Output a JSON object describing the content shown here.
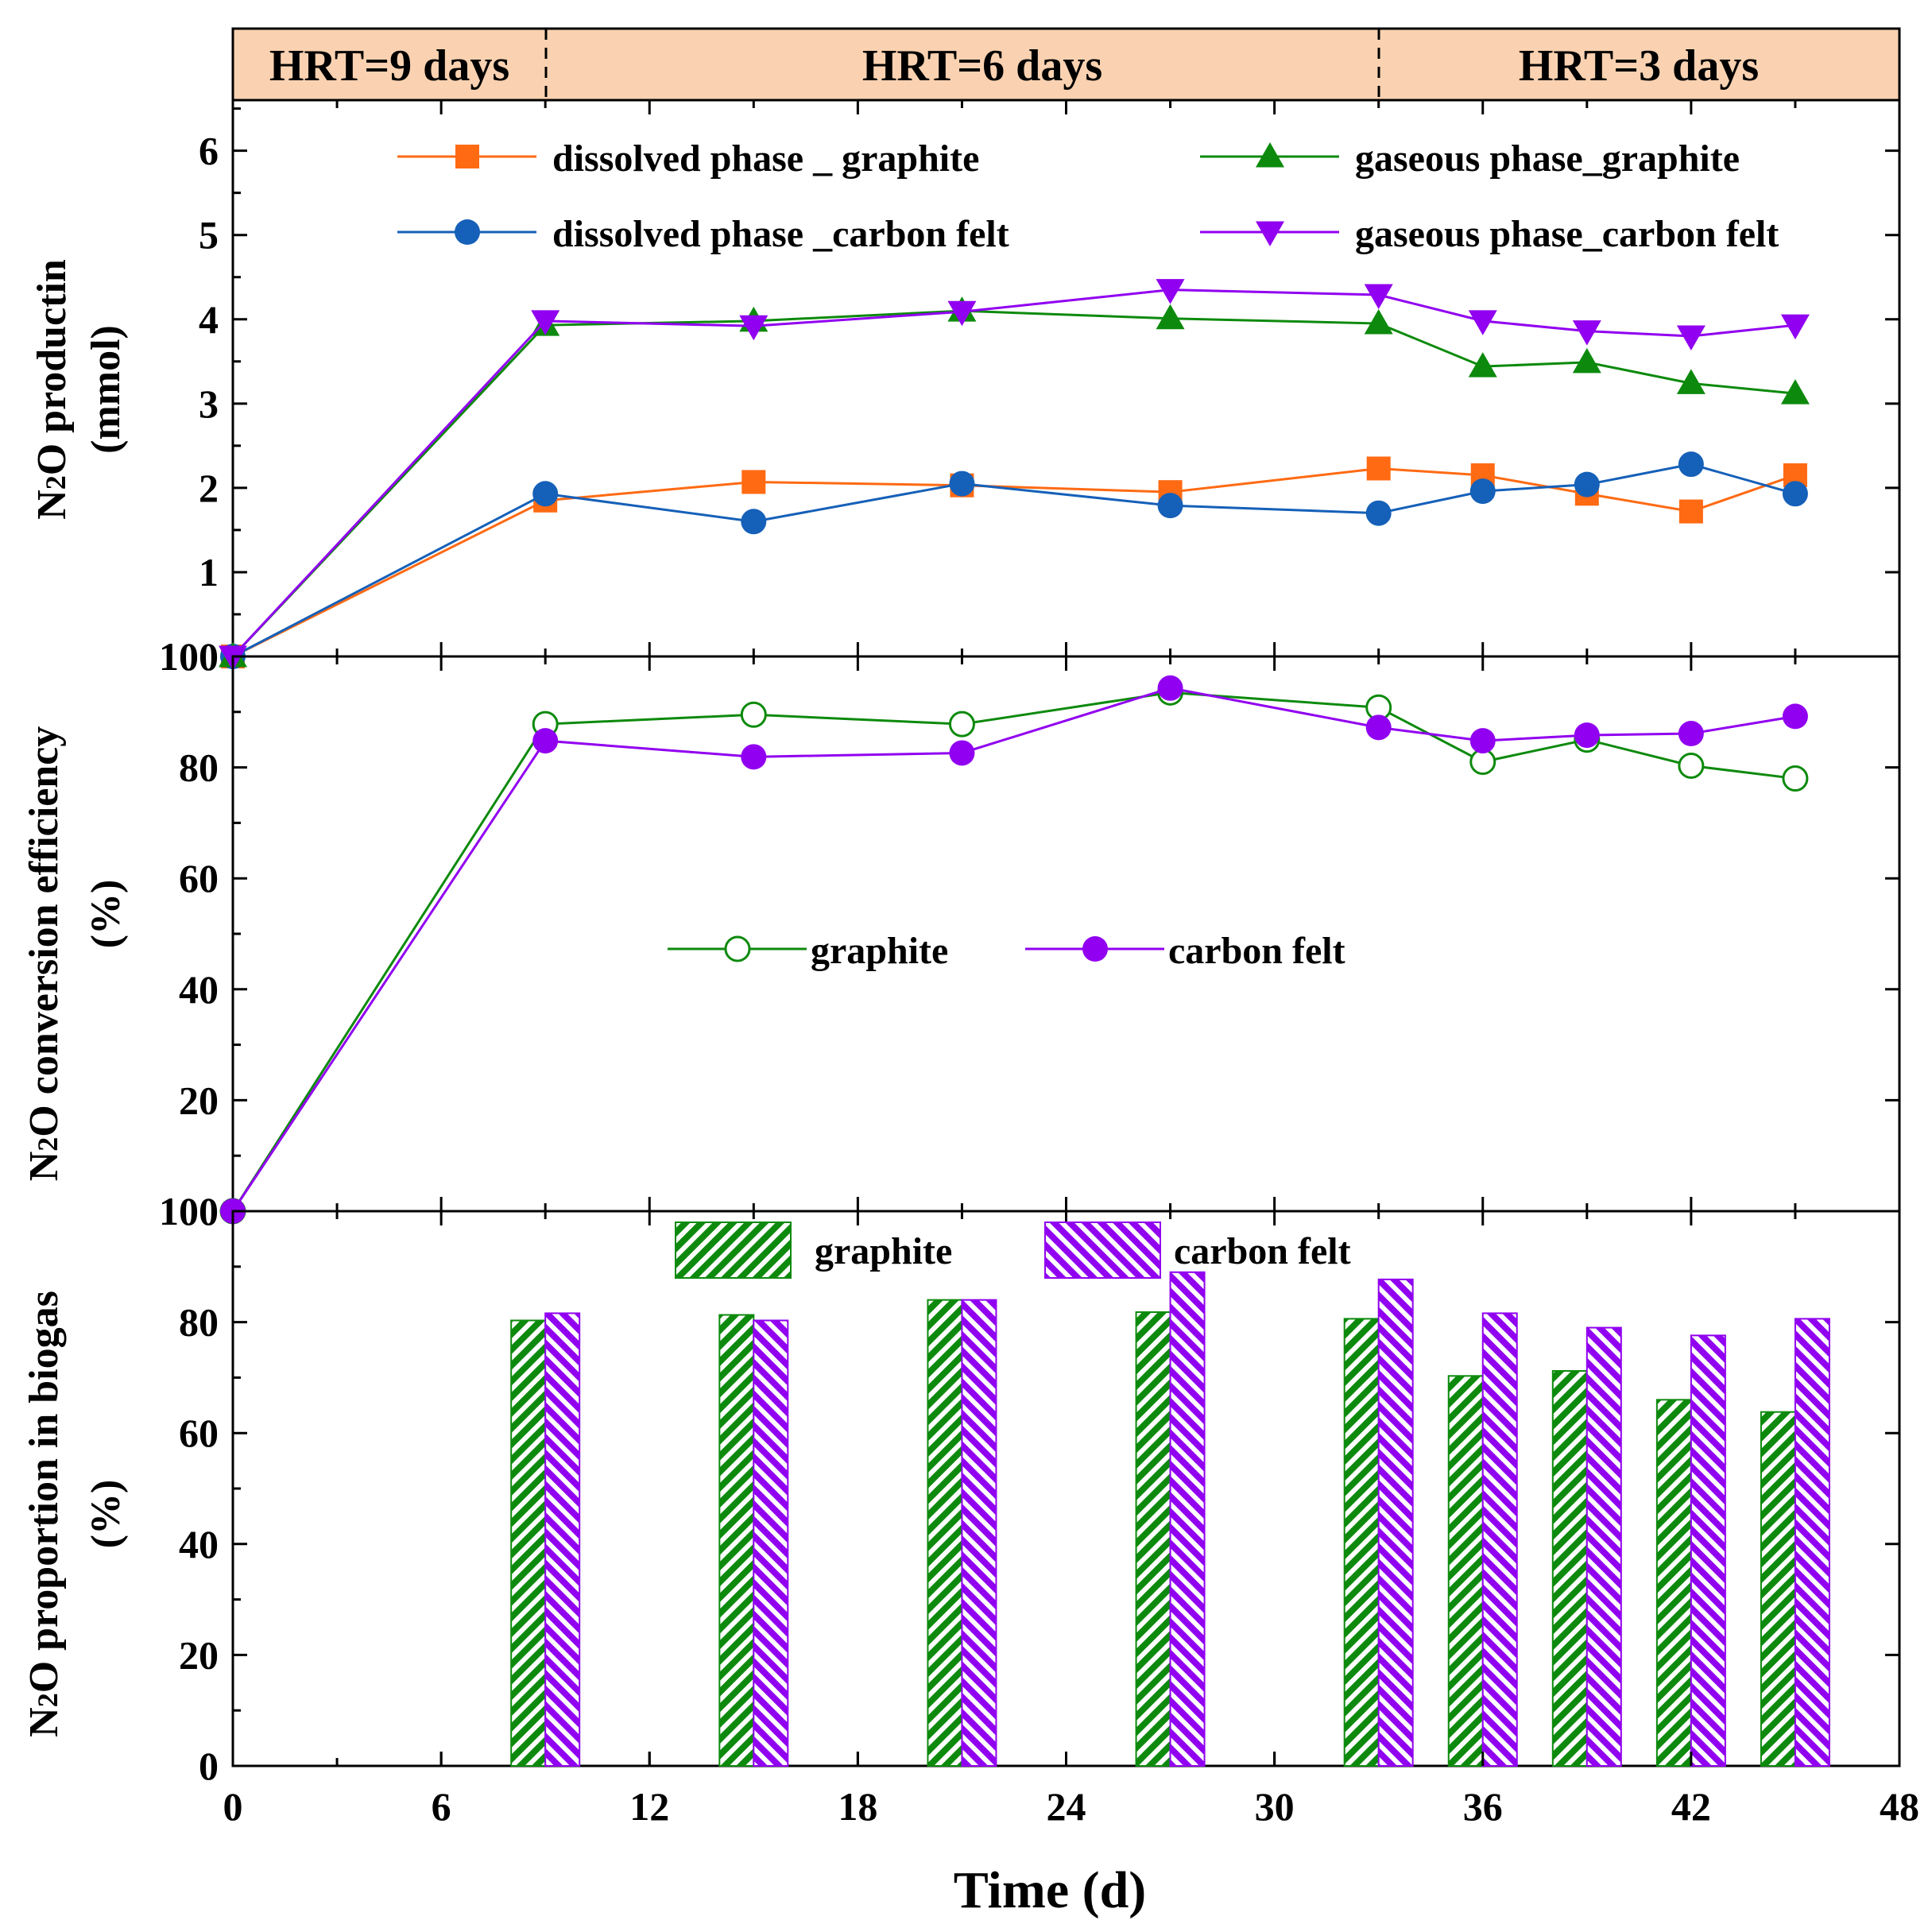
{
  "colors": {
    "orange": "#ff6a13",
    "green": "#0d8a0d",
    "blue": "#1560b8",
    "purple": "#9100f0",
    "hrt_band": "#fad2b1"
  },
  "hrt_band": {
    "labels": [
      "HRT=9 days",
      "HRT=6 days",
      "HRT=3 days"
    ],
    "boundaries_days": [
      9,
      33
    ]
  },
  "chart_data": [
    {
      "type": "line",
      "panel": "top",
      "ylabel_line1": "N2O productin",
      "ylabel_line2": "(mmol)",
      "ylim": [
        0,
        6.6
      ],
      "yticks": [
        1,
        2,
        3,
        4,
        5,
        6
      ],
      "ytick_labels": [
        "1",
        "2",
        "3",
        "4",
        "5",
        "6"
      ],
      "series": [
        {
          "name": "dissolved phase _ graphite",
          "color": "orange",
          "marker": "square",
          "x": [
            0,
            9,
            15,
            21,
            27,
            33,
            36,
            39,
            42,
            45
          ],
          "values": [
            0,
            1.85,
            2.07,
            2.03,
            1.95,
            2.23,
            2.15,
            1.93,
            1.72,
            2.15
          ]
        },
        {
          "name": "dissolved phase _carbon felt",
          "color": "blue",
          "marker": "circle",
          "x": [
            0,
            9,
            15,
            21,
            27,
            33,
            36,
            39,
            42,
            45
          ],
          "values": [
            0,
            1.93,
            1.6,
            2.05,
            1.79,
            1.7,
            1.96,
            2.04,
            2.28,
            1.93
          ]
        },
        {
          "name": "gaseous phase_graphite",
          "color": "green",
          "marker": "triangle-up",
          "x": [
            0,
            9,
            15,
            21,
            27,
            33,
            36,
            39,
            42,
            45
          ],
          "values": [
            0,
            3.93,
            3.98,
            4.1,
            4.01,
            3.95,
            3.44,
            3.49,
            3.24,
            3.12
          ]
        },
        {
          "name": "gaseous phase_carbon felt",
          "color": "purple",
          "marker": "triangle-down",
          "x": [
            0,
            9,
            15,
            21,
            27,
            33,
            36,
            39,
            42,
            45
          ],
          "values": [
            0,
            3.98,
            3.92,
            4.09,
            4.35,
            4.29,
            3.98,
            3.86,
            3.8,
            3.93
          ]
        }
      ]
    },
    {
      "type": "line",
      "panel": "middle",
      "ylabel_line1": "N2O conversion efficiency",
      "ylabel_line2": "(%)",
      "ylim": [
        0,
        100
      ],
      "yticks": [
        20,
        40,
        60,
        80,
        100
      ],
      "ytick_labels": [
        "20",
        "40",
        "60",
        "80",
        "100"
      ],
      "series": [
        {
          "name": "graphite",
          "color": "green",
          "marker": "circle-open",
          "x": [
            0,
            9,
            15,
            21,
            27,
            33,
            36,
            39,
            42,
            45
          ],
          "values": [
            0,
            87.8,
            89.5,
            87.8,
            93.5,
            90.8,
            81,
            85,
            80.3,
            78
          ]
        },
        {
          "name": "carbon felt",
          "color": "purple",
          "marker": "circle",
          "x": [
            0,
            9,
            15,
            21,
            27,
            33,
            36,
            39,
            42,
            45
          ],
          "values": [
            0,
            84.8,
            81.9,
            82.6,
            94.3,
            87.2,
            84.8,
            85.8,
            86.1,
            89.2
          ]
        }
      ]
    },
    {
      "type": "bar",
      "panel": "bottom",
      "ylabel_line1": "N2O proportion in biogas",
      "ylabel_line2": "(%)",
      "ylim": [
        0,
        100
      ],
      "yticks": [
        0,
        20,
        40,
        60,
        80,
        100
      ],
      "ytick_labels": [
        "0",
        "20",
        "40",
        "60",
        "80",
        "100"
      ],
      "xlabel": "Time (d)",
      "xlim": [
        0,
        48
      ],
      "xticks": [
        0,
        6,
        12,
        18,
        24,
        30,
        36,
        42,
        48
      ],
      "xtick_labels": [
        "0",
        "6",
        "12",
        "18",
        "24",
        "30",
        "36",
        "42",
        "48"
      ],
      "categories": [
        9,
        15,
        21,
        27,
        33,
        36,
        39,
        42,
        45
      ],
      "series": [
        {
          "name": "graphite",
          "color": "green",
          "pattern": "diagonal-hatch",
          "values": [
            80.3,
            81.3,
            84,
            81.8,
            80.6,
            70.3,
            71.2,
            66,
            63.8
          ]
        },
        {
          "name": "carbon felt",
          "color": "purple",
          "pattern": "diagonal-hatch-reverse",
          "values": [
            81.6,
            80.3,
            84,
            89,
            87.7,
            81.6,
            79,
            77.6,
            80.6
          ]
        }
      ]
    }
  ]
}
